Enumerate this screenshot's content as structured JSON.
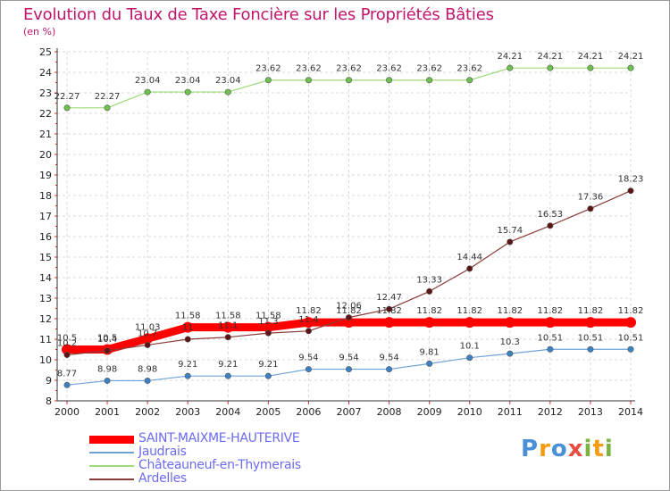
{
  "title": "Evolution du Taux de Taxe Foncière sur les Propriétés Bâties",
  "unit_label": "(en %)",
  "logo": {
    "letters": [
      "P",
      "r",
      "o",
      "x",
      "i",
      "t",
      "i"
    ],
    "colors": [
      "#4a90d9",
      "#f39c12",
      "#4a90d9",
      "#e74c3c",
      "#7cb342",
      "#f39c12",
      "#7cb342"
    ]
  },
  "chart_data": {
    "type": "line",
    "x": [
      "2000",
      "2001",
      "2002",
      "2003",
      "2004",
      "2005",
      "2006",
      "2007",
      "2008",
      "2009",
      "2010",
      "2011",
      "2012",
      "2013",
      "2014"
    ],
    "ylim": [
      8,
      25
    ],
    "yticks": [
      "8",
      "9",
      "10",
      "11",
      "12",
      "13",
      "14",
      "15",
      "16",
      "17",
      "18",
      "19",
      "20",
      "21",
      "22",
      "23",
      "24",
      "25"
    ],
    "grid": true,
    "legend_position": "bottom-left",
    "series": [
      {
        "name": "SAINT-MAIXME-HAUTERIVE",
        "color": "#ff0000",
        "marker": "#ff0000",
        "width": 9,
        "values": [
          10.5,
          10.5,
          11.03,
          11.58,
          11.58,
          11.58,
          11.82,
          11.82,
          11.82,
          11.82,
          11.82,
          11.82,
          11.82,
          11.82,
          11.82
        ],
        "labels": [
          "10.5",
          "10.5",
          "11.03",
          "11.58",
          "11.58",
          "11.58",
          "11.82",
          "11.82",
          "11.82",
          "11.82",
          "11.82",
          "11.82",
          "11.82",
          "11.82",
          "11.82"
        ]
      },
      {
        "name": "Jaudrais",
        "color": "#6fa3d6",
        "marker": "#3b82c4",
        "width": 1.2,
        "values": [
          8.77,
          8.98,
          8.98,
          9.21,
          9.21,
          9.21,
          9.54,
          9.54,
          9.54,
          9.81,
          10.1,
          10.3,
          10.51,
          10.51,
          10.51
        ],
        "labels": [
          "8.77",
          "8.98",
          "8.98",
          "9.21",
          "9.21",
          "9.21",
          "9.54",
          "9.54",
          "9.54",
          "9.81",
          "10.1",
          "10.3",
          "10.51",
          "10.51",
          "10.51"
        ]
      },
      {
        "name": "Châteauneuf-en-Thymerais",
        "color": "#9ed97a",
        "marker": "#6cc24a",
        "width": 1.2,
        "values": [
          22.27,
          22.27,
          23.04,
          23.04,
          23.04,
          23.62,
          23.62,
          23.62,
          23.62,
          23.62,
          23.62,
          24.21,
          24.21,
          24.21,
          24.21
        ],
        "labels": [
          "22.27",
          "22.27",
          "23.04",
          "23.04",
          "23.04",
          "23.62",
          "23.62",
          "23.62",
          "23.62",
          "23.62",
          "23.62",
          "24.21",
          "24.21",
          "24.21",
          "24.21"
        ]
      },
      {
        "name": "Ardelles",
        "color": "#8b3a3a",
        "marker": "#5e1414",
        "width": 1.2,
        "values": [
          10.24,
          10.44,
          10.72,
          11.0,
          11.1,
          11.3,
          11.4,
          12.06,
          12.47,
          13.33,
          14.44,
          15.74,
          16.53,
          17.36,
          18.23
        ],
        "labels": [
          "10.2",
          "10.4",
          "10.7",
          "11",
          "11.1",
          "11.3",
          "11.4",
          "12.06",
          "12.47",
          "13.33",
          "14.44",
          "15.74",
          "16.53",
          "17.36",
          "18.23"
        ]
      }
    ]
  }
}
